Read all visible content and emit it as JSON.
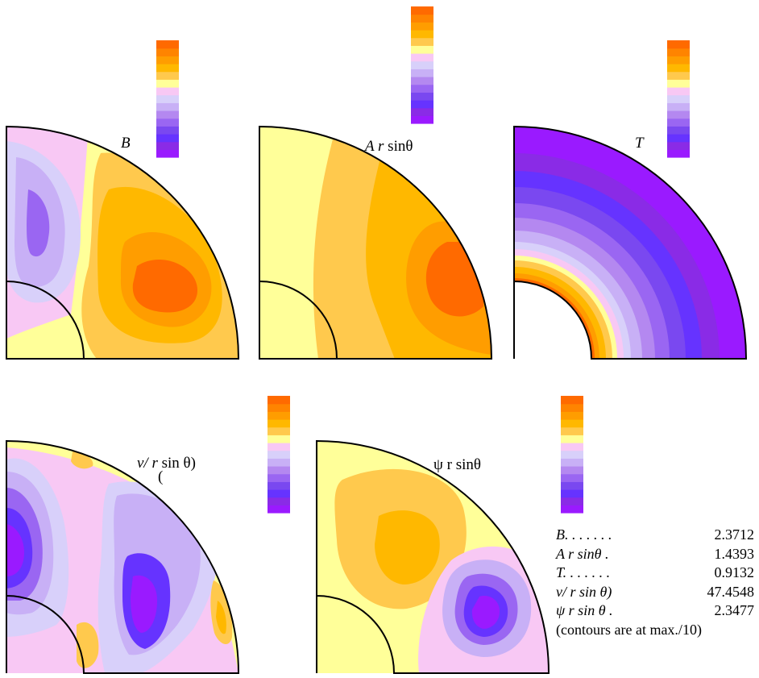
{
  "colors": {
    "scale": [
      "#9a1aff",
      "#8a2be6",
      "#6633ff",
      "#7a48f0",
      "#9a66f2",
      "#b488f0",
      "#c8b0f6",
      "#d8d0fa",
      "#f8c8f4",
      "#ffff99",
      "#ffc94d",
      "#ffb800",
      "#ff9d00",
      "#ff8400",
      "#ff6a00"
    ],
    "outline": "#000000",
    "background": "#ffffff"
  },
  "panels": [
    {
      "id": "b",
      "label_italic": "B",
      "label_rest": ""
    },
    {
      "id": "a",
      "label_italic": "A r",
      "label_rest": " sinθ"
    },
    {
      "id": "t",
      "label_italic": "T",
      "label_rest": ""
    },
    {
      "id": "v",
      "label_italic": "v/ r",
      "label_rest": " sin θ)",
      "label_extra": "("
    },
    {
      "id": "psi",
      "label_italic": "",
      "label_rest": "ψ r sinθ"
    }
  ],
  "legend": {
    "rows": [
      {
        "name": "B. . . . . . .",
        "value": "2.3712"
      },
      {
        "name": "A r sinθ .",
        "value": "1.4393"
      },
      {
        "name": "T. . . . . . .",
        "value": "0.9132"
      },
      {
        "name": "v/ r sin θ)",
        "value": "47.4548"
      },
      {
        "name": "ψ r sin θ .",
        "value": "2.3477"
      }
    ],
    "note": "(contours are at max./10)"
  }
}
